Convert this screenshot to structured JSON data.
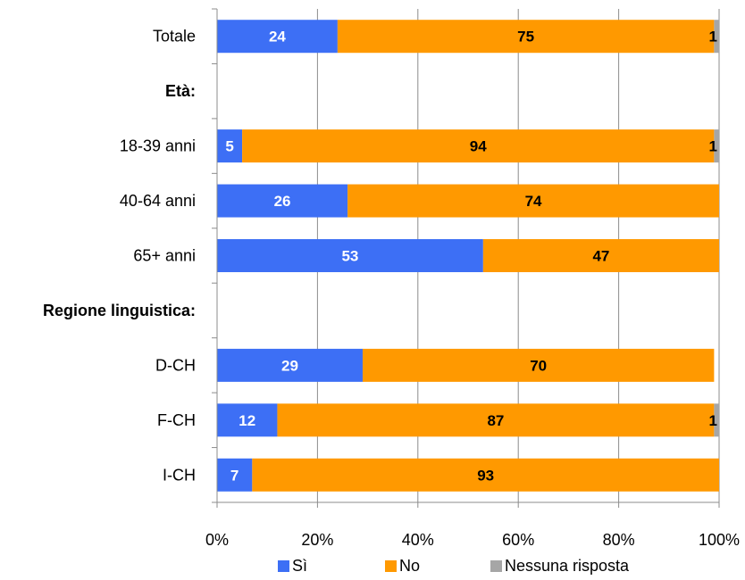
{
  "chart_data": {
    "type": "bar",
    "orientation": "horizontal",
    "stacked": true,
    "percent_stacked": true,
    "categories": [
      "Totale",
      "Età:",
      "18-39 anni",
      "40-64 anni",
      "65+ anni",
      "Regione linguistica:",
      "D-CH",
      "F-CH",
      "I-CH"
    ],
    "category_bold": [
      false,
      true,
      false,
      false,
      false,
      true,
      false,
      false,
      false
    ],
    "series": [
      {
        "name": "Sì",
        "color": "#3d6ff5",
        "label_color": "#ffffff",
        "values": [
          24,
          null,
          5,
          26,
          53,
          null,
          29,
          12,
          7
        ]
      },
      {
        "name": "No",
        "color": "#ff9900",
        "label_color": "#000000",
        "values": [
          75,
          null,
          94,
          74,
          47,
          null,
          70,
          87,
          93
        ]
      },
      {
        "name": "Nessuna risposta",
        "color": "#a6a6a6",
        "label_color": "#000000",
        "values": [
          1,
          null,
          1,
          0,
          0,
          null,
          0,
          1,
          0
        ]
      }
    ],
    "xlim": [
      0,
      100
    ],
    "xticks": [
      "0%",
      "20%",
      "40%",
      "60%",
      "80%",
      "100%"
    ],
    "grid": true,
    "legend_position": "bottom"
  }
}
